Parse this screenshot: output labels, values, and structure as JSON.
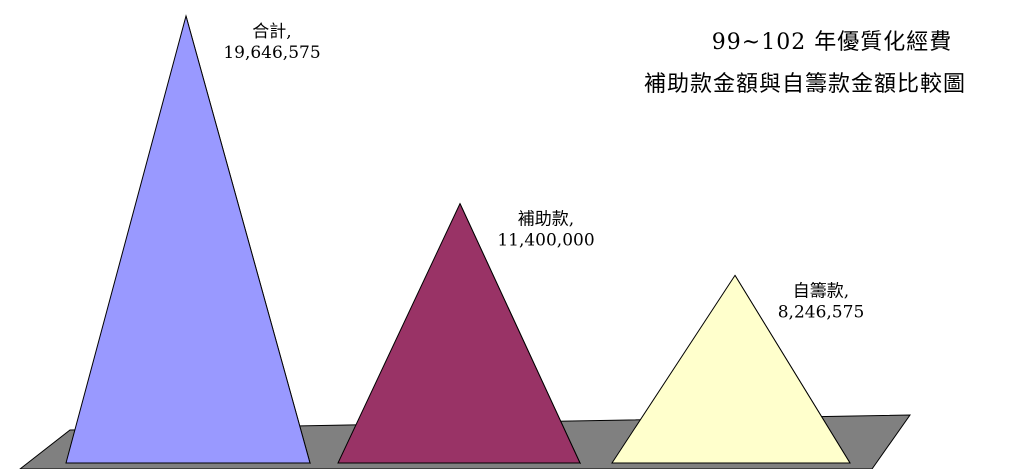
{
  "chart_data": {
    "type": "bar",
    "shape": "pyramid-3d",
    "title_lines": [
      "99~102 年優質化經費",
      "補助款金額與自籌款金額比較圖"
    ],
    "categories": [
      "合計",
      "補助款",
      "自籌款"
    ],
    "values": [
      19646575,
      11400000,
      8246575
    ],
    "value_labels": [
      "19,646,575",
      "11,400,000",
      "8,246,575"
    ],
    "ylim": [
      0,
      19646575
    ],
    "grid": false,
    "legend": "none",
    "colors": {
      "front": [
        "#9999ff",
        "#993366",
        "#ffffcc"
      ],
      "side": [
        "#4c4c80",
        "#4d1a33",
        "#808066"
      ],
      "floor": "#808080"
    }
  }
}
